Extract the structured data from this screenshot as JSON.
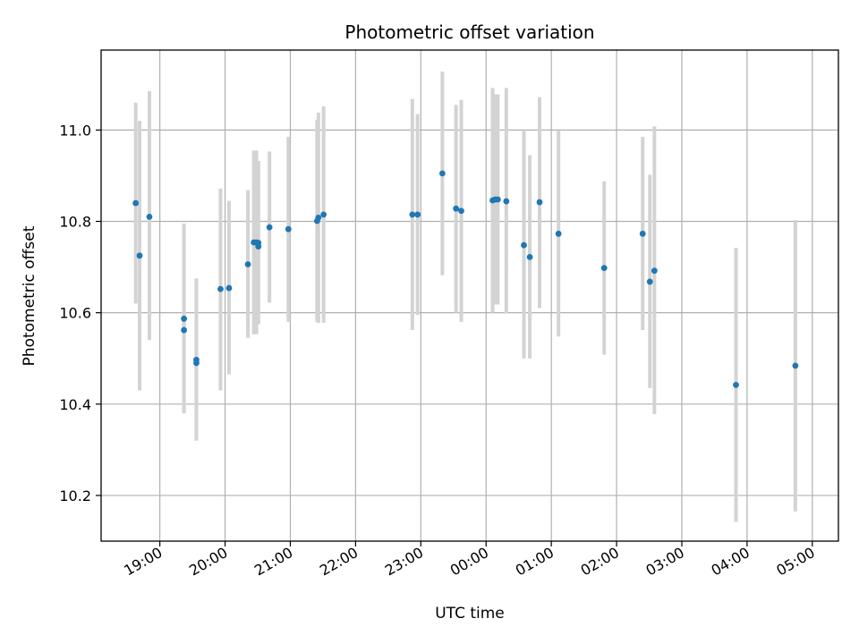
{
  "chart_data": {
    "type": "scatter",
    "title": "Photometric offset variation",
    "xlabel": "UTC time",
    "ylabel": "Photometric offset",
    "grid": true,
    "colors": {
      "point": "#1f77b4",
      "errorbar": "#d3d3d3",
      "grid": "#b0b0b0"
    },
    "xlim": [
      18.1,
      29.4
    ],
    "ylim": [
      10.1,
      11.175
    ],
    "x_ticks": [
      {
        "value": 19,
        "label": "19:00"
      },
      {
        "value": 20,
        "label": "20:00"
      },
      {
        "value": 21,
        "label": "21:00"
      },
      {
        "value": 22,
        "label": "22:00"
      },
      {
        "value": 23,
        "label": "23:00"
      },
      {
        "value": 24,
        "label": "00:00"
      },
      {
        "value": 25,
        "label": "01:00"
      },
      {
        "value": 26,
        "label": "02:00"
      },
      {
        "value": 27,
        "label": "03:00"
      },
      {
        "value": 28,
        "label": "04:00"
      },
      {
        "value": 29,
        "label": "05:00"
      }
    ],
    "y_ticks": [
      {
        "value": 10.2,
        "label": "10.2"
      },
      {
        "value": 10.4,
        "label": "10.4"
      },
      {
        "value": 10.6,
        "label": "10.6"
      },
      {
        "value": 10.8,
        "label": "10.8"
      },
      {
        "value": 11.0,
        "label": "11.0"
      }
    ],
    "points": [
      {
        "x": 18.63,
        "y": 10.84,
        "lo": 10.62,
        "hi": 11.06
      },
      {
        "x": 18.69,
        "y": 10.725,
        "lo": 10.43,
        "hi": 11.02
      },
      {
        "x": 18.84,
        "y": 10.81,
        "lo": 10.54,
        "hi": 11.085
      },
      {
        "x": 19.37,
        "y": 10.587,
        "lo": 10.38,
        "hi": 10.795
      },
      {
        "x": 19.37,
        "y": 10.562,
        "lo": 10.38,
        "hi": 10.795
      },
      {
        "x": 19.56,
        "y": 10.497,
        "lo": 10.32,
        "hi": 10.675
      },
      {
        "x": 19.56,
        "y": 10.49,
        "lo": 10.32,
        "hi": 10.675
      },
      {
        "x": 19.93,
        "y": 10.652,
        "lo": 10.43,
        "hi": 10.872
      },
      {
        "x": 20.06,
        "y": 10.654,
        "lo": 10.465,
        "hi": 10.845
      },
      {
        "x": 20.35,
        "y": 10.706,
        "lo": 10.545,
        "hi": 10.868
      },
      {
        "x": 20.44,
        "y": 10.754,
        "lo": 10.553,
        "hi": 10.955
      },
      {
        "x": 20.48,
        "y": 10.754,
        "lo": 10.553,
        "hi": 10.955
      },
      {
        "x": 20.51,
        "y": 10.745,
        "lo": 10.575,
        "hi": 10.932
      },
      {
        "x": 20.51,
        "y": 10.753,
        "lo": 10.575,
        "hi": 10.932
      },
      {
        "x": 20.68,
        "y": 10.787,
        "lo": 10.622,
        "hi": 10.953
      },
      {
        "x": 20.97,
        "y": 10.783,
        "lo": 10.58,
        "hi": 10.985
      },
      {
        "x": 21.41,
        "y": 10.801,
        "lo": 10.58,
        "hi": 11.022
      },
      {
        "x": 21.43,
        "y": 10.808,
        "lo": 10.578,
        "hi": 11.038
      },
      {
        "x": 21.51,
        "y": 10.815,
        "lo": 10.578,
        "hi": 11.052
      },
      {
        "x": 22.87,
        "y": 10.815,
        "lo": 10.562,
        "hi": 11.068
      },
      {
        "x": 22.95,
        "y": 10.815,
        "lo": 10.595,
        "hi": 11.035
      },
      {
        "x": 23.33,
        "y": 10.905,
        "lo": 10.682,
        "hi": 11.128
      },
      {
        "x": 23.54,
        "y": 10.828,
        "lo": 10.6,
        "hi": 11.055
      },
      {
        "x": 23.62,
        "y": 10.823,
        "lo": 10.58,
        "hi": 11.066
      },
      {
        "x": 24.1,
        "y": 10.846,
        "lo": 10.6,
        "hi": 11.092
      },
      {
        "x": 24.14,
        "y": 10.848,
        "lo": 10.618,
        "hi": 11.078
      },
      {
        "x": 24.18,
        "y": 10.848,
        "lo": 10.618,
        "hi": 11.078
      },
      {
        "x": 24.31,
        "y": 10.844,
        "lo": 10.598,
        "hi": 11.092
      },
      {
        "x": 24.58,
        "y": 10.748,
        "lo": 10.5,
        "hi": 10.998
      },
      {
        "x": 24.67,
        "y": 10.722,
        "lo": 10.5,
        "hi": 10.945
      },
      {
        "x": 24.82,
        "y": 10.842,
        "lo": 10.61,
        "hi": 11.072
      },
      {
        "x": 25.11,
        "y": 10.773,
        "lo": 10.548,
        "hi": 10.998
      },
      {
        "x": 25.81,
        "y": 10.698,
        "lo": 10.508,
        "hi": 10.888
      },
      {
        "x": 26.4,
        "y": 10.773,
        "lo": 10.562,
        "hi": 10.985
      },
      {
        "x": 26.51,
        "y": 10.668,
        "lo": 10.435,
        "hi": 10.902
      },
      {
        "x": 26.58,
        "y": 10.692,
        "lo": 10.378,
        "hi": 11.008
      },
      {
        "x": 27.83,
        "y": 10.442,
        "lo": 10.142,
        "hi": 10.742
      },
      {
        "x": 28.74,
        "y": 10.484,
        "lo": 10.165,
        "hi": 10.803
      }
    ]
  }
}
